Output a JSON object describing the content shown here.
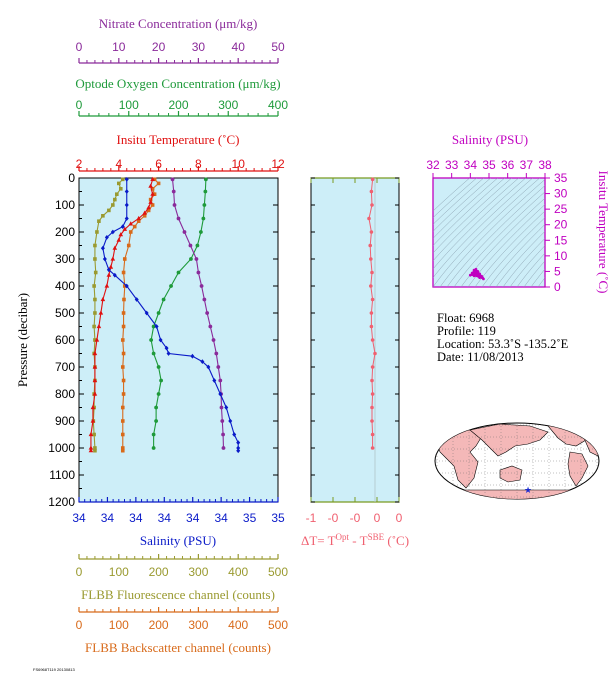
{
  "colors": {
    "plot_bg": "#cdeef8",
    "nitrate": "#8a2a9a",
    "oxygen": "#1e9a3a",
    "temperature": "#e01010",
    "salinity": "#0a1ac8",
    "fluorescence": "#9a9a30",
    "backscatter": "#d86a1a",
    "delta_t": "#f06070",
    "sal_axis_ts": "#c000c0",
    "land": "#f4b8b8",
    "ocean": "#ffffff",
    "float_marker": "#1a2ad0"
  },
  "titles": {
    "nitrate": "Nitrate Concentration (μm/kg)",
    "oxygen": "Optode Oxygen Concentration (μm/kg)",
    "temperature": "Insitu Temperature (˚C)",
    "salinity": "Salinity (PSU)",
    "pressure": "Pressure (decibar)",
    "fluorescence": "FLBB Fluorescence channel (counts)",
    "backscatter": "FLBB Backscatter channel (counts)",
    "delta_t_main": "ΔT= T",
    "delta_t_sup1": "Opt",
    "delta_t_mid": " - T",
    "delta_t_sup2": "SBE",
    "delta_t_unit": " (˚C)",
    "ts_salinity": "Salinity (PSU)",
    "ts_temperature": "Insitu Temperature (˚C)"
  },
  "float_info": {
    "float": "Float:  6968",
    "profile": "Profile:  119",
    "location": "Location:  53.3˚S  -135.2˚E",
    "date": "Date:  11/08/2013"
  },
  "footer_text": "FS6968T119 20130813",
  "chart_data": [
    {
      "type": "line",
      "name": "main-profile-panel",
      "y_label": "Pressure (decibar)",
      "ylim": [
        1200,
        0
      ],
      "y_ticks": [
        0,
        100,
        200,
        300,
        400,
        500,
        600,
        700,
        800,
        900,
        1000,
        1100,
        1200
      ],
      "axes": {
        "nitrate": {
          "label": "Nitrate Concentration (μm/kg)",
          "lim": [
            0,
            50
          ],
          "ticks": [
            "0",
            "10",
            "20",
            "30",
            "40",
            "50"
          ]
        },
        "oxygen": {
          "label": "Optode Oxygen Concentration (μm/kg)",
          "lim": [
            0,
            400
          ],
          "ticks": [
            "0",
            "100",
            "200",
            "300",
            "400"
          ]
        },
        "temperature": {
          "label": "Insitu Temperature (˚C)",
          "lim": [
            2,
            12
          ],
          "ticks": [
            "2",
            "4",
            "6",
            "8",
            "10",
            "12"
          ]
        },
        "salinity": {
          "label": "Salinity (PSU)",
          "lim": [
            33.9,
            34.9
          ],
          "ticks": [
            "34",
            "34",
            "34",
            "34",
            "34",
            "34",
            "35",
            "35"
          ]
        },
        "fluorescence": {
          "label": "FLBB Fluorescence channel (counts)",
          "lim": [
            0,
            500
          ],
          "ticks": [
            "0",
            "100",
            "200",
            "300",
            "400",
            "500"
          ]
        },
        "backscatter": {
          "label": "FLBB Backscatter channel (counts)",
          "lim": [
            0,
            500
          ],
          "ticks": [
            "0",
            "100",
            "200",
            "300",
            "400",
            "500"
          ]
        }
      },
      "series": {
        "temperature": {
          "p": [
            5,
            30,
            60,
            90,
            110,
            130,
            150,
            170,
            190,
            210,
            230,
            260,
            300,
            330,
            360,
            400,
            450,
            500,
            550,
            600,
            650,
            700,
            750,
            800,
            850,
            900,
            950,
            1000,
            1010
          ],
          "v": [
            5.7,
            5.6,
            5.7,
            5.6,
            5.5,
            5.3,
            5.0,
            4.6,
            4.3,
            4.1,
            4.0,
            3.8,
            3.7,
            3.6,
            3.5,
            3.4,
            3.2,
            3.1,
            3.0,
            2.9,
            2.8,
            2.8,
            2.8,
            2.8,
            2.7,
            2.7,
            2.6,
            2.6,
            2.6
          ]
        },
        "salinity": {
          "p": [
            5,
            50,
            100,
            150,
            180,
            200,
            220,
            260,
            300,
            340,
            360,
            400,
            450,
            500,
            550,
            600,
            630,
            650,
            660,
            680,
            700,
            750,
            800,
            850,
            900,
            950,
            980,
            1000,
            1010
          ],
          "v": [
            34.14,
            34.14,
            34.14,
            34.14,
            34.12,
            34.07,
            34.04,
            34.02,
            34.03,
            34.05,
            34.08,
            34.14,
            34.19,
            34.24,
            34.29,
            34.31,
            34.34,
            34.35,
            34.47,
            34.52,
            34.55,
            34.58,
            34.61,
            34.64,
            34.66,
            34.68,
            34.7,
            34.7,
            34.7
          ]
        },
        "nitrate": {
          "p": [
            5,
            50,
            100,
            150,
            200,
            250,
            300,
            350,
            400,
            450,
            500,
            550,
            600,
            650,
            700,
            750,
            800,
            850,
            900,
            950,
            1000
          ],
          "v": [
            23.5,
            23.8,
            24.0,
            25.0,
            26.5,
            28.0,
            29.5,
            30.0,
            30.8,
            31.5,
            32.2,
            33.0,
            33.8,
            34.5,
            35.0,
            35.5,
            35.7,
            35.8,
            36.0,
            36.2,
            36.3
          ]
        },
        "oxygen": {
          "p": [
            5,
            50,
            100,
            150,
            200,
            250,
            300,
            350,
            400,
            450,
            500,
            550,
            600,
            650,
            700,
            750,
            800,
            850,
            900,
            950,
            1000
          ],
          "v": [
            255,
            254,
            252,
            250,
            245,
            238,
            225,
            200,
            185,
            170,
            160,
            150,
            145,
            150,
            160,
            165,
            160,
            155,
            155,
            150,
            150
          ]
        },
        "fluorescence": {
          "p": [
            5,
            20,
            40,
            60,
            80,
            100,
            120,
            140,
            160,
            200,
            250,
            300,
            350,
            400,
            450,
            500,
            550,
            600,
            650,
            700,
            750,
            800,
            850,
            900,
            950,
            1000,
            1010
          ],
          "v": [
            110,
            100,
            105,
            95,
            90,
            85,
            75,
            60,
            50,
            45,
            40,
            40,
            42,
            38,
            40,
            40,
            38,
            40,
            38,
            40,
            40,
            38,
            38,
            36,
            38,
            40,
            40
          ]
        },
        "backscatter": {
          "p": [
            5,
            20,
            40,
            60,
            80,
            100,
            120,
            140,
            160,
            180,
            200,
            250,
            300,
            350,
            400,
            450,
            500,
            550,
            600,
            650,
            700,
            750,
            800,
            850,
            900,
            950,
            1000,
            1010
          ],
          "v": [
            190,
            200,
            185,
            190,
            180,
            185,
            175,
            165,
            150,
            140,
            130,
            125,
            115,
            112,
            115,
            113,
            112,
            112,
            110,
            112,
            110,
            112,
            112,
            110,
            110,
            110,
            110,
            110
          ]
        }
      }
    },
    {
      "type": "line",
      "name": "delta-t-panel",
      "x_label": "ΔT= T^Opt - T^SBE (˚C)",
      "xlim": [
        -1,
        0.2
      ],
      "x_ticks": [
        "-1",
        "-0",
        "-0",
        "0",
        "0"
      ],
      "ylim": [
        1200,
        0
      ],
      "series": [
        {
          "p": [
            5,
            50,
            100,
            150,
            200,
            250,
            300,
            350,
            400,
            450,
            500,
            550,
            600,
            650,
            700,
            750,
            800,
            850,
            900,
            950,
            1000
          ],
          "v": [
            -0.04,
            -0.06,
            -0.05,
            -0.1,
            -0.06,
            -0.08,
            -0.07,
            -0.05,
            -0.07,
            -0.04,
            -0.06,
            -0.06,
            -0.04,
            0.0,
            -0.04,
            -0.05,
            -0.04,
            -0.05,
            -0.05,
            -0.04,
            -0.04
          ]
        }
      ]
    },
    {
      "type": "scatter",
      "name": "ts-diagram",
      "x_label": "Salinity (PSU)",
      "y_label": "Insitu Temperature (˚C)",
      "xlim": [
        32,
        38
      ],
      "ylim": [
        0,
        35
      ],
      "x_ticks": [
        "32",
        "33",
        "34",
        "35",
        "36",
        "37",
        "38"
      ],
      "y_ticks": [
        "0",
        "5",
        "10",
        "15",
        "20",
        "25",
        "30",
        "35"
      ],
      "points": {
        "s": [
          34.0,
          34.1,
          34.2,
          34.3,
          34.4,
          34.5,
          34.6,
          34.65,
          34.7,
          34.5,
          34.2
        ],
        "t": [
          3.8,
          4.5,
          5.4,
          5.7,
          5.0,
          4.2,
          3.5,
          3.0,
          2.6,
          3.0,
          3.6
        ]
      }
    }
  ],
  "map": {
    "float_position": {
      "lat": -53.3,
      "lon": -135.2
    }
  }
}
